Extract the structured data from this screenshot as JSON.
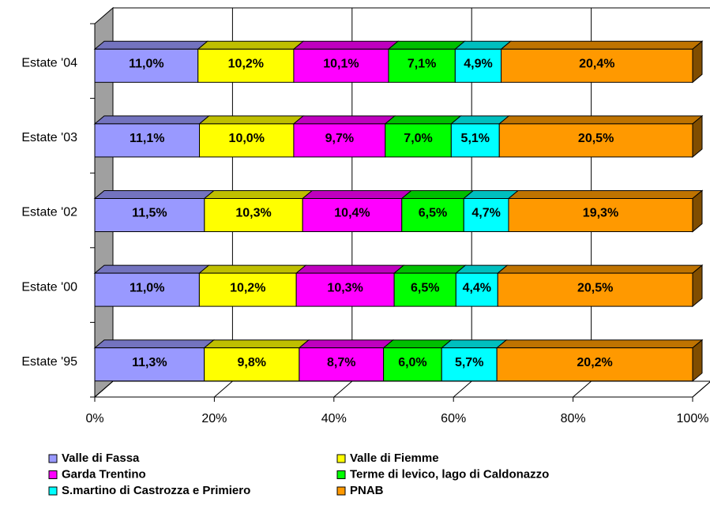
{
  "chart_data": {
    "type": "bar",
    "orientation": "horizontal",
    "stacking": "percent",
    "three_d": true,
    "categories": [
      "Estate '04",
      "Estate '03",
      "Estate '02",
      "Estate '00",
      "Estate '95"
    ],
    "series": [
      {
        "name": "Valle di Fassa",
        "color": "#9999ff",
        "values": [
          11.0,
          11.1,
          11.5,
          11.0,
          11.3
        ],
        "value_labels": [
          "11,0%",
          "11,1%",
          "11,5%",
          "11,0%",
          "11,3%"
        ]
      },
      {
        "name": "Valle di Fiemme",
        "color": "#ffff00",
        "values": [
          10.2,
          10.0,
          10.3,
          10.2,
          9.8
        ],
        "value_labels": [
          "10,2%",
          "10,0%",
          "10,3%",
          "10,2%",
          "9,8%"
        ]
      },
      {
        "name": "Garda Trentino",
        "color": "#ff00ff",
        "values": [
          10.1,
          9.7,
          10.4,
          10.3,
          8.7
        ],
        "value_labels": [
          "10,1%",
          "9,7%",
          "10,4%",
          "10,3%",
          "8,7%"
        ]
      },
      {
        "name": "Terme di levico, lago di Caldonazzo",
        "color": "#00ff00",
        "values": [
          7.1,
          7.0,
          6.5,
          6.5,
          6.0
        ],
        "value_labels": [
          "7,1%",
          "7,0%",
          "6,5%",
          "6,5%",
          "6,0%"
        ]
      },
      {
        "name": "S.martino di Castrozza e Primiero",
        "color": "#00ffff",
        "values": [
          4.9,
          5.1,
          4.7,
          4.4,
          5.7
        ],
        "value_labels": [
          "4,9%",
          "5,1%",
          "4,7%",
          "4,4%",
          "5,7%"
        ]
      },
      {
        "name": "PNAB",
        "color": "#ff9900",
        "values": [
          20.4,
          20.5,
          19.3,
          20.5,
          20.2
        ],
        "value_labels": [
          "20,4%",
          "20,5%",
          "19,3%",
          "20,5%",
          "20,2%"
        ]
      }
    ],
    "xlim": [
      0,
      100
    ],
    "xticks": [
      {
        "value": 0,
        "label": "0%"
      },
      {
        "value": 20,
        "label": "20%"
      },
      {
        "value": 40,
        "label": "40%"
      },
      {
        "value": 60,
        "label": "60%"
      },
      {
        "value": 80,
        "label": "80%"
      },
      {
        "value": 100,
        "label": "100%"
      }
    ],
    "grid": true,
    "legend": "bottom"
  }
}
